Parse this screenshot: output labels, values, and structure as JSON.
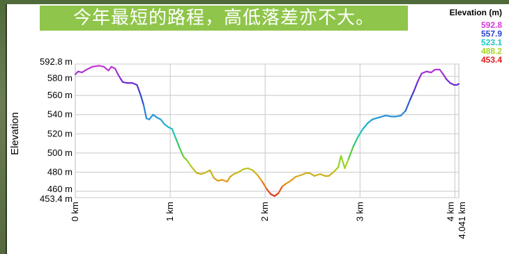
{
  "caption": "今年最短的路程，高低落差亦不大。",
  "chart_data": {
    "type": "line",
    "ylabel": "Elevation",
    "legend_title": "Elevation (m)",
    "legend": [
      {
        "label": "592.8",
        "color": "#d13bd6"
      },
      {
        "label": "557.9",
        "color": "#2b45c8"
      },
      {
        "label": "523.1",
        "color": "#19c7c7"
      },
      {
        "label": "488.2",
        "color": "#a6d421"
      },
      {
        "label": "453.4",
        "color": "#e01b1b"
      }
    ],
    "y_ticks": [
      {
        "value": 453.4,
        "label": "453.4 m"
      },
      {
        "value": 460,
        "label": "460 m"
      },
      {
        "value": 480,
        "label": "480 m"
      },
      {
        "value": 500,
        "label": "500 m"
      },
      {
        "value": 520,
        "label": "520 m"
      },
      {
        "value": 540,
        "label": "540 m"
      },
      {
        "value": 560,
        "label": "560 m"
      },
      {
        "value": 580,
        "label": "580 m"
      },
      {
        "value": 592.8,
        "label": "592.8 m"
      }
    ],
    "x_ticks": [
      {
        "value": 0,
        "label": "0 km"
      },
      {
        "value": 1,
        "label": "1 km"
      },
      {
        "value": 2,
        "label": "2 km"
      },
      {
        "value": 3,
        "label": "3 km"
      },
      {
        "value": 4,
        "label": "4 km"
      },
      {
        "value": 4.041,
        "label": "4.041 km"
      }
    ],
    "xlim": [
      0,
      4.041
    ],
    "ylim": [
      453.4,
      592.8
    ],
    "grid": true,
    "legend_placement": "top-right",
    "series": [
      {
        "x": [
          0,
          0.03,
          0.07,
          0.12,
          0.18,
          0.25,
          0.3,
          0.35,
          0.38,
          0.42,
          0.45,
          0.48,
          0.5,
          0.55,
          0.6,
          0.65,
          0.69,
          0.72,
          0.75,
          0.78,
          0.82,
          0.86,
          0.9,
          0.94,
          0.98,
          1.02,
          1.06,
          1.1,
          1.14,
          1.18,
          1.22,
          1.28,
          1.33,
          1.38,
          1.42,
          1.46,
          1.5,
          1.55,
          1.6,
          1.63,
          1.67,
          1.72,
          1.77,
          1.82,
          1.87,
          1.92,
          1.97,
          2.02,
          2.06,
          2.1,
          2.14,
          2.18,
          2.22,
          2.27,
          2.32,
          2.38,
          2.43,
          2.47,
          2.52,
          2.58,
          2.63,
          2.67,
          2.72,
          2.77,
          2.8,
          2.84,
          2.88,
          2.93,
          2.98,
          3.03,
          3.08,
          3.13,
          3.2,
          3.27,
          3.33,
          3.38,
          3.43,
          3.48,
          3.53,
          3.57,
          3.61,
          3.65,
          3.7,
          3.75,
          3.79,
          3.84,
          3.87,
          3.91,
          3.95,
          3.99,
          4.02,
          4.041
        ],
        "y": [
          582,
          585,
          584,
          587,
          590,
          591,
          590,
          586,
          590,
          588,
          582,
          577,
          574,
          573,
          573,
          571,
          560,
          550,
          536,
          535,
          540,
          537,
          535,
          530,
          527,
          525,
          515,
          505,
          496,
          492,
          486,
          479,
          478,
          480,
          482,
          474,
          471,
          472,
          470,
          475,
          478,
          480,
          483,
          484,
          482,
          477,
          470,
          462,
          457,
          455,
          458,
          465,
          468,
          471,
          475,
          477,
          479,
          479,
          476,
          478,
          476,
          476,
          480,
          485,
          497,
          484,
          494,
          507,
          517,
          525,
          531,
          535,
          537,
          539,
          538,
          538,
          539,
          544,
          556,
          565,
          575,
          583,
          585,
          584,
          587,
          587,
          583,
          577,
          573,
          571,
          571,
          572
        ]
      }
    ]
  }
}
